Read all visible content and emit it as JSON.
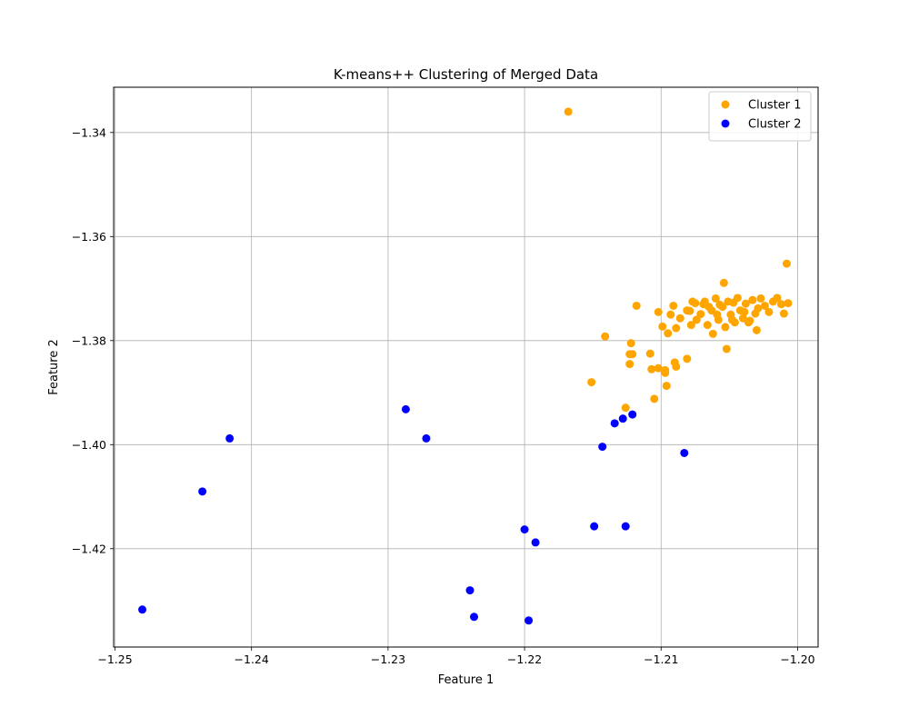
{
  "chart_data": {
    "type": "scatter",
    "title": "K-means++ Clustering of Merged Data",
    "xlabel": "Feature 1",
    "ylabel": "Feature 2",
    "xlim": [
      -1.2501,
      -1.1985
    ],
    "ylim": [
      -1.4389,
      -1.3313
    ],
    "xticks": [
      -1.25,
      -1.24,
      -1.23,
      -1.22,
      -1.21,
      -1.2
    ],
    "xtick_labels": [
      "−1.25",
      "−1.24",
      "−1.23",
      "−1.22",
      "−1.21",
      "−1.20"
    ],
    "yticks": [
      -1.34,
      -1.36,
      -1.38,
      -1.4,
      -1.42
    ],
    "ytick_labels": [
      "−1.34",
      "−1.36",
      "−1.38",
      "−1.40",
      "−1.42"
    ],
    "grid": true,
    "legend_position": "top-right",
    "series": [
      {
        "name": "Cluster 1",
        "color": "#FFA500",
        "points": [
          [
            -1.2168,
            -1.336
          ],
          [
            -1.2008,
            -1.3652
          ],
          [
            -1.2054,
            -1.3689
          ],
          [
            -1.2141,
            -1.3792
          ],
          [
            -1.2151,
            -1.388
          ],
          [
            -1.2118,
            -1.3733
          ],
          [
            -1.2102,
            -1.3745
          ],
          [
            -1.2099,
            -1.3773
          ],
          [
            -1.2093,
            -1.375
          ],
          [
            -1.2091,
            -1.3733
          ],
          [
            -1.2095,
            -1.3786
          ],
          [
            -1.2089,
            -1.3776
          ],
          [
            -1.2086,
            -1.3757
          ],
          [
            -1.2081,
            -1.3742
          ],
          [
            -1.2078,
            -1.377
          ],
          [
            -1.2075,
            -1.3728
          ],
          [
            -1.2074,
            -1.376
          ],
          [
            -1.2071,
            -1.3749
          ],
          [
            -1.2068,
            -1.3725
          ],
          [
            -1.2066,
            -1.377
          ],
          [
            -1.2063,
            -1.3742
          ],
          [
            -1.2062,
            -1.3787
          ],
          [
            -1.206,
            -1.3719
          ],
          [
            -1.2058,
            -1.376
          ],
          [
            -1.2055,
            -1.3735
          ],
          [
            -1.2053,
            -1.3774
          ],
          [
            -1.2051,
            -1.3725
          ],
          [
            -1.2049,
            -1.375
          ],
          [
            -1.2046,
            -1.3765
          ],
          [
            -1.2044,
            -1.3718
          ],
          [
            -1.2042,
            -1.3742
          ],
          [
            -1.204,
            -1.3757
          ],
          [
            -1.2038,
            -1.3729
          ],
          [
            -1.2036,
            -1.3765
          ],
          [
            -1.2033,
            -1.3722
          ],
          [
            -1.2031,
            -1.3748
          ],
          [
            -1.2029,
            -1.3738
          ],
          [
            -1.2027,
            -1.3719
          ],
          [
            -1.2024,
            -1.3733
          ],
          [
            -1.2021,
            -1.3745
          ],
          [
            -1.2018,
            -1.3725
          ],
          [
            -1.2015,
            -1.3718
          ],
          [
            -1.2012,
            -1.373
          ],
          [
            -1.201,
            -1.3748
          ],
          [
            -1.2007,
            -1.3728
          ],
          [
            -1.2035,
            -1.3762
          ],
          [
            -1.203,
            -1.378
          ],
          [
            -1.2052,
            -1.3816
          ],
          [
            -1.2079,
            -1.3743
          ],
          [
            -1.2057,
            -1.3731
          ],
          [
            -1.2047,
            -1.3727
          ],
          [
            -1.2065,
            -1.3735
          ],
          [
            -1.2039,
            -1.3745
          ],
          [
            -1.2059,
            -1.375
          ],
          [
            -1.2069,
            -1.373
          ],
          [
            -1.2077,
            -1.3725
          ],
          [
            -1.2048,
            -1.376
          ],
          [
            -1.2122,
            -1.3805
          ],
          [
            -1.2123,
            -1.3826
          ],
          [
            -1.2121,
            -1.3826
          ],
          [
            -1.2123,
            -1.3845
          ],
          [
            -1.2108,
            -1.3825
          ],
          [
            -1.2107,
            -1.3855
          ],
          [
            -1.2102,
            -1.3853
          ],
          [
            -1.2097,
            -1.3862
          ],
          [
            -1.2097,
            -1.3857
          ],
          [
            -1.209,
            -1.3842
          ],
          [
            -1.2089,
            -1.385
          ],
          [
            -1.2081,
            -1.3835
          ],
          [
            -1.2096,
            -1.3887
          ],
          [
            -1.2105,
            -1.3912
          ],
          [
            -1.2126,
            -1.3929
          ]
        ]
      },
      {
        "name": "Cluster 2",
        "color": "#0000FF",
        "points": [
          [
            -1.248,
            -1.4317
          ],
          [
            -1.2436,
            -1.409
          ],
          [
            -1.2416,
            -1.3988
          ],
          [
            -1.2287,
            -1.3932
          ],
          [
            -1.2272,
            -1.3988
          ],
          [
            -1.224,
            -1.428
          ],
          [
            -1.2237,
            -1.4331
          ],
          [
            -1.22,
            -1.4163
          ],
          [
            -1.2197,
            -1.4338
          ],
          [
            -1.2192,
            -1.4188
          ],
          [
            -1.2149,
            -1.4157
          ],
          [
            -1.2143,
            -1.4004
          ],
          [
            -1.2134,
            -1.3959
          ],
          [
            -1.2128,
            -1.395
          ],
          [
            -1.2126,
            -1.4157
          ],
          [
            -1.2121,
            -1.3942
          ],
          [
            -1.2083,
            -1.4016
          ]
        ]
      }
    ]
  }
}
